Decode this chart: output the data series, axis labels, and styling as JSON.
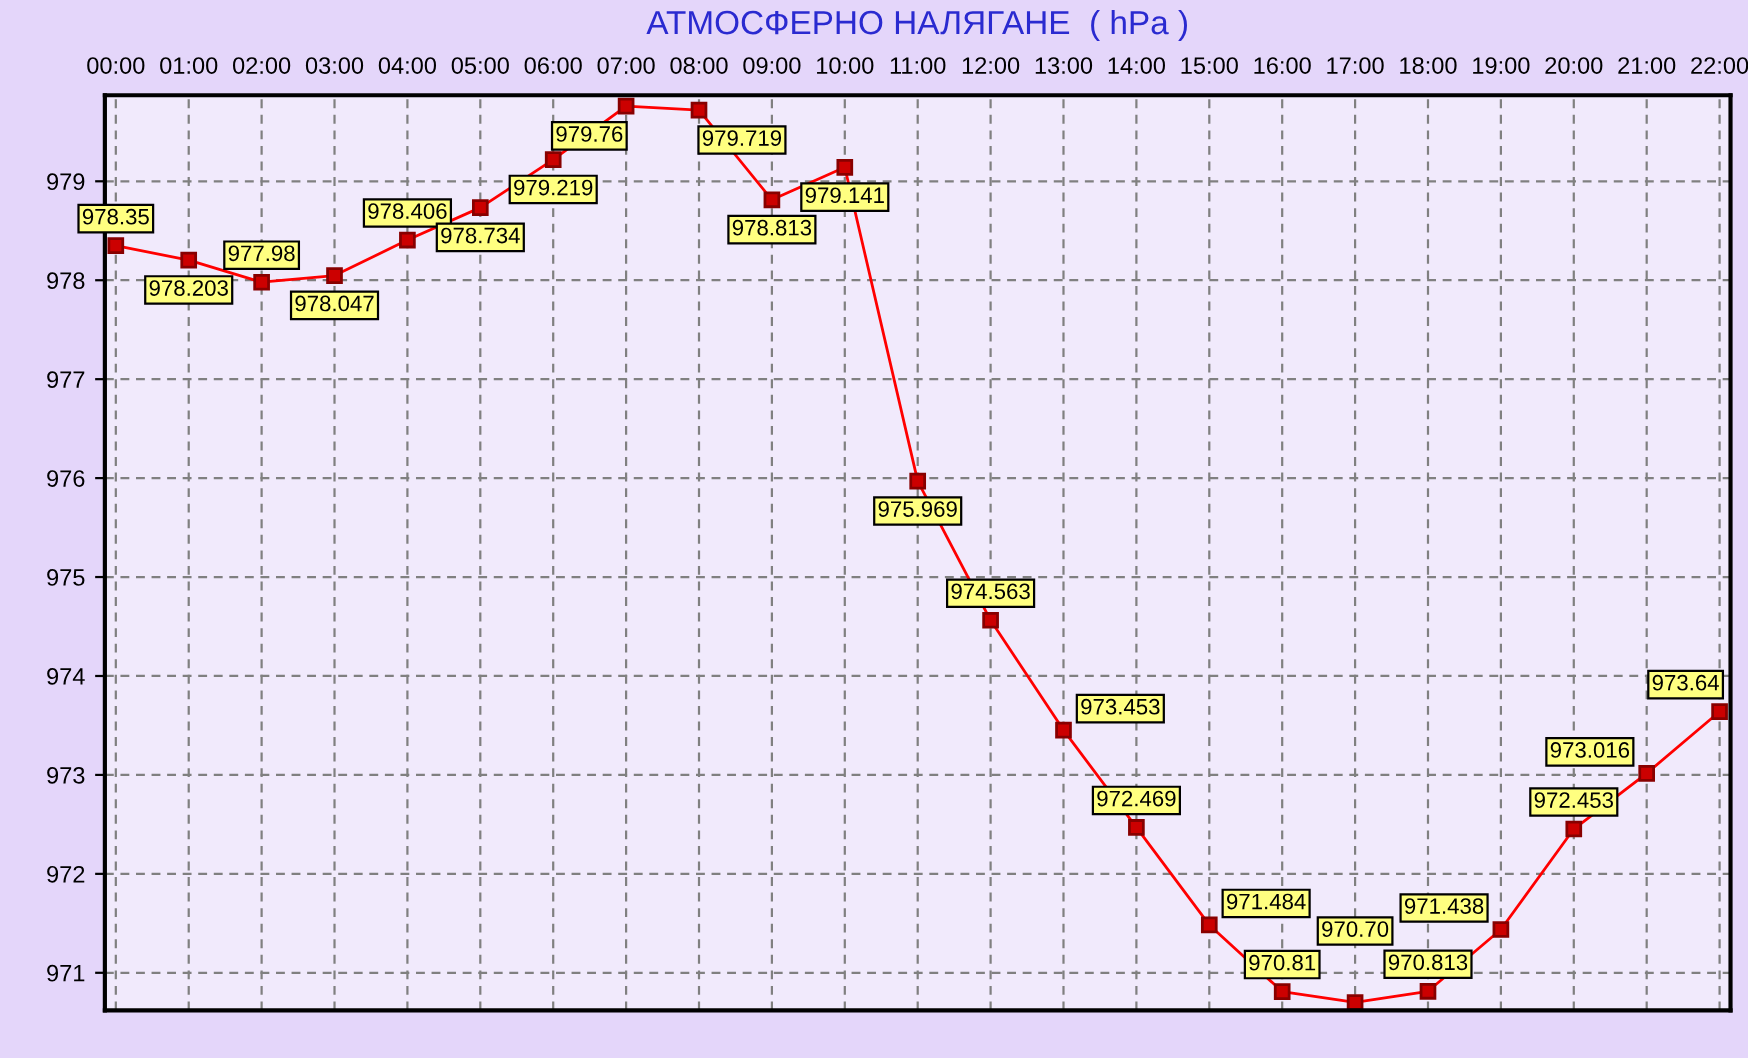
{
  "chart_data": {
    "type": "line",
    "title": "АТМОСФЕРНО НАЛЯГАНЕ  ( hPa )",
    "categories": [
      "00:00",
      "01:00",
      "02:00",
      "03:00",
      "04:00",
      "05:00",
      "06:00",
      "07:00",
      "08:00",
      "09:00",
      "10:00",
      "11:00",
      "12:00",
      "13:00",
      "14:00",
      "15:00",
      "16:00",
      "17:00",
      "18:00",
      "19:00",
      "20:00",
      "21:00",
      "22:00"
    ],
    "series": [
      {
        "color": "#ff0000",
        "values": [
          978.35,
          978.203,
          977.98,
          978.047,
          978.406,
          978.734,
          979.219,
          979.76,
          979.719,
          978.813,
          979.141,
          975.969,
          974.563,
          973.453,
          972.469,
          971.484,
          970.81,
          970.7,
          970.813,
          971.438,
          972.453,
          973.016,
          973.64
        ],
        "value_labels": [
          "978.35",
          "978.203",
          "977.98",
          "978.047",
          "978.406",
          "978.734",
          "979.219",
          "979.76",
          "979.719",
          "978.813",
          "979.141",
          "975.969",
          "974.563",
          "973.453",
          "972.469",
          "971.484",
          "970.81",
          "970.70",
          "970.813",
          "971.438",
          "972.453",
          "973.016",
          "973.64"
        ]
      }
    ],
    "ylim": [
      970.62,
      979.87
    ],
    "yticks": [
      971,
      972,
      973,
      974,
      975,
      976,
      977,
      978,
      979
    ],
    "grid": true,
    "marker": "square",
    "legend": false
  }
}
